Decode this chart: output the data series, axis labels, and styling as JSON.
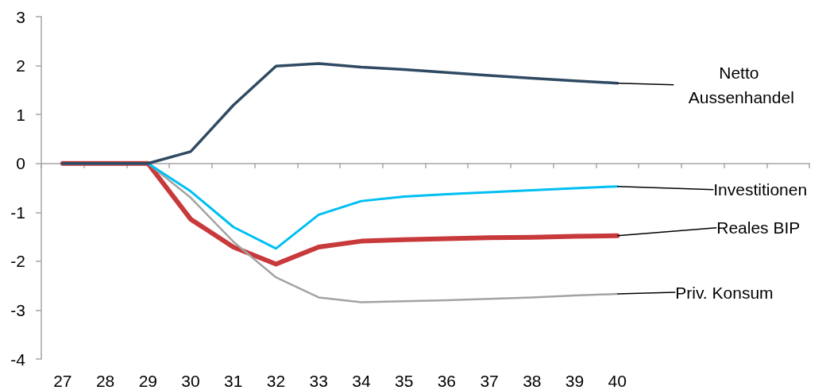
{
  "chart_data": {
    "type": "line",
    "categories": [
      "27",
      "28",
      "29",
      "30",
      "31",
      "32",
      "33",
      "34",
      "35",
      "36",
      "37",
      "38",
      "39",
      "40",
      null,
      null,
      null,
      null
    ],
    "series": [
      {
        "name": "Reales BIP",
        "color": "#c8393b",
        "values": [
          0,
          0,
          0,
          -1.14,
          -1.71,
          -2.06,
          -1.71,
          -1.59,
          -1.56,
          -1.54,
          -1.52,
          -1.51,
          -1.49,
          -1.48,
          null,
          null,
          null,
          null
        ]
      },
      {
        "name": "Priv. Konsum",
        "color": "#a3a3a3",
        "values": [
          0,
          0,
          0,
          -0.7,
          -1.6,
          -2.33,
          -2.74,
          -2.84,
          -2.82,
          -2.8,
          -2.77,
          -2.74,
          -2.7,
          -2.67,
          null,
          null,
          null,
          null
        ]
      },
      {
        "name": "Investitionen",
        "color": "#00bff3",
        "values": [
          0,
          0,
          0,
          -0.57,
          -1.3,
          -1.74,
          -1.05,
          -0.77,
          -0.68,
          -0.63,
          -0.59,
          -0.55,
          -0.51,
          -0.47,
          null,
          null,
          null,
          null
        ]
      },
      {
        "name": "Netto Aussenhandel",
        "color": "#2f4a62",
        "values": [
          0,
          0,
          0,
          0.24,
          1.19,
          1.99,
          2.04,
          1.97,
          1.92,
          1.86,
          1.8,
          1.74,
          1.69,
          1.64,
          null,
          null,
          null,
          null
        ]
      }
    ],
    "ylim": [
      -4,
      3
    ],
    "yticks": [
      -4,
      -3,
      -2,
      -1,
      0,
      1,
      2,
      3
    ],
    "marker": "none",
    "legend": false
  }
}
